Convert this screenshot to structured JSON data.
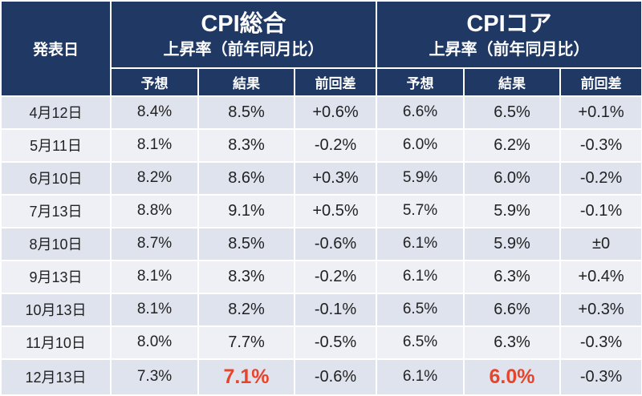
{
  "header": {
    "date_label": "発表日",
    "groups": [
      {
        "title": "CPI総合",
        "subtitle": "上昇率（前年同月比）"
      },
      {
        "title": "CPIコア",
        "subtitle": "上昇率（前年同月比）"
      }
    ],
    "columns": [
      "予想",
      "結果",
      "前回差",
      "予想",
      "結果",
      "前回差"
    ]
  },
  "rows": [
    {
      "date": "4月12日",
      "total_forecast": "8.4%",
      "total_result": "8.5%",
      "total_diff": "+0.6%",
      "core_forecast": "6.6%",
      "core_result": "6.5%",
      "core_diff": "+0.1%"
    },
    {
      "date": "5月11日",
      "total_forecast": "8.1%",
      "total_result": "8.3%",
      "total_diff": "-0.2%",
      "core_forecast": "6.0%",
      "core_result": "6.2%",
      "core_diff": "-0.3%"
    },
    {
      "date": "6月10日",
      "total_forecast": "8.2%",
      "total_result": "8.6%",
      "total_diff": "+0.3%",
      "core_forecast": "5.9%",
      "core_result": "6.0%",
      "core_diff": "-0.2%"
    },
    {
      "date": "7月13日",
      "total_forecast": "8.8%",
      "total_result": "9.1%",
      "total_diff": "+0.5%",
      "core_forecast": "5.7%",
      "core_result": "5.9%",
      "core_diff": "-0.1%"
    },
    {
      "date": "8月10日",
      "total_forecast": "8.7%",
      "total_result": "8.5%",
      "total_diff": "-0.6%",
      "core_forecast": "6.1%",
      "core_result": "5.9%",
      "core_diff": "±0"
    },
    {
      "date": "9月13日",
      "total_forecast": "8.1%",
      "total_result": "8.3%",
      "total_diff": "-0.2%",
      "core_forecast": "6.1%",
      "core_result": "6.3%",
      "core_diff": "+0.4%"
    },
    {
      "date": "10月13日",
      "total_forecast": "8.1%",
      "total_result": "8.2%",
      "total_diff": "-0.1%",
      "core_forecast": "6.5%",
      "core_result": "6.6%",
      "core_diff": "+0.3%"
    },
    {
      "date": "11月10日",
      "total_forecast": "8.0%",
      "total_result": "7.7%",
      "total_diff": "-0.5%",
      "core_forecast": "6.5%",
      "core_result": "6.3%",
      "core_diff": "-0.3%"
    },
    {
      "date": "12月13日",
      "total_forecast": "7.3%",
      "total_result": "7.1%",
      "total_diff": "-0.6%",
      "core_forecast": "6.1%",
      "core_result": "6.0%",
      "core_diff": "-0.3%"
    }
  ],
  "colors": {
    "header_bg": "#1f3864",
    "header_text": "#ffffff",
    "row_even_bg": "#dfe3ee",
    "row_odd_bg": "#eef0f5",
    "highlight_text": "#e8442a"
  }
}
